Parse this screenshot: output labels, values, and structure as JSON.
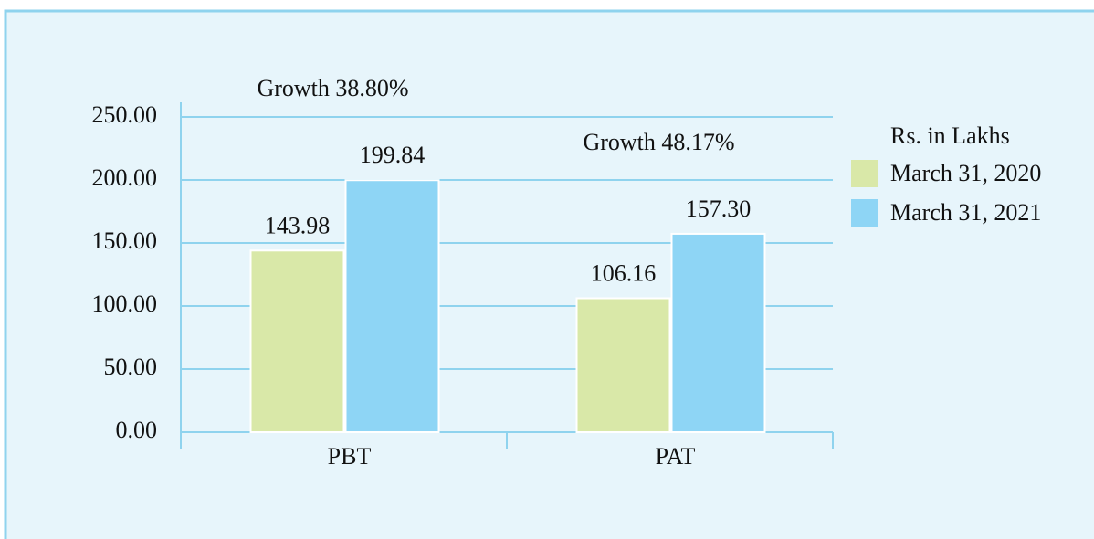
{
  "chart_data": {
    "type": "bar",
    "categories": [
      "PBT",
      "PAT"
    ],
    "series": [
      {
        "name": "March 31, 2020",
        "color": "#d9e8a8",
        "values": [
          143.98,
          106.16
        ],
        "value_labels": [
          "143.98",
          "106.16"
        ]
      },
      {
        "name": "March 31, 2021",
        "color": "#8ed5f5",
        "values": [
          199.84,
          157.3
        ],
        "value_labels": [
          "199.84",
          "157.30"
        ]
      }
    ],
    "annotations": [
      "Growth 38.80%",
      "Growth 48.17%"
    ],
    "legend_title": "Rs. in Lakhs",
    "legend": "right",
    "ylim": [
      0,
      250
    ],
    "yticks": [
      {
        "value": 0,
        "label": "0.00"
      },
      {
        "value": 50,
        "label": "50.00"
      },
      {
        "value": 100,
        "label": "100.00"
      },
      {
        "value": 150,
        "label": "150.00"
      },
      {
        "value": 200,
        "label": "200.00"
      },
      {
        "value": 250,
        "label": "250.00"
      }
    ],
    "grid": true
  }
}
